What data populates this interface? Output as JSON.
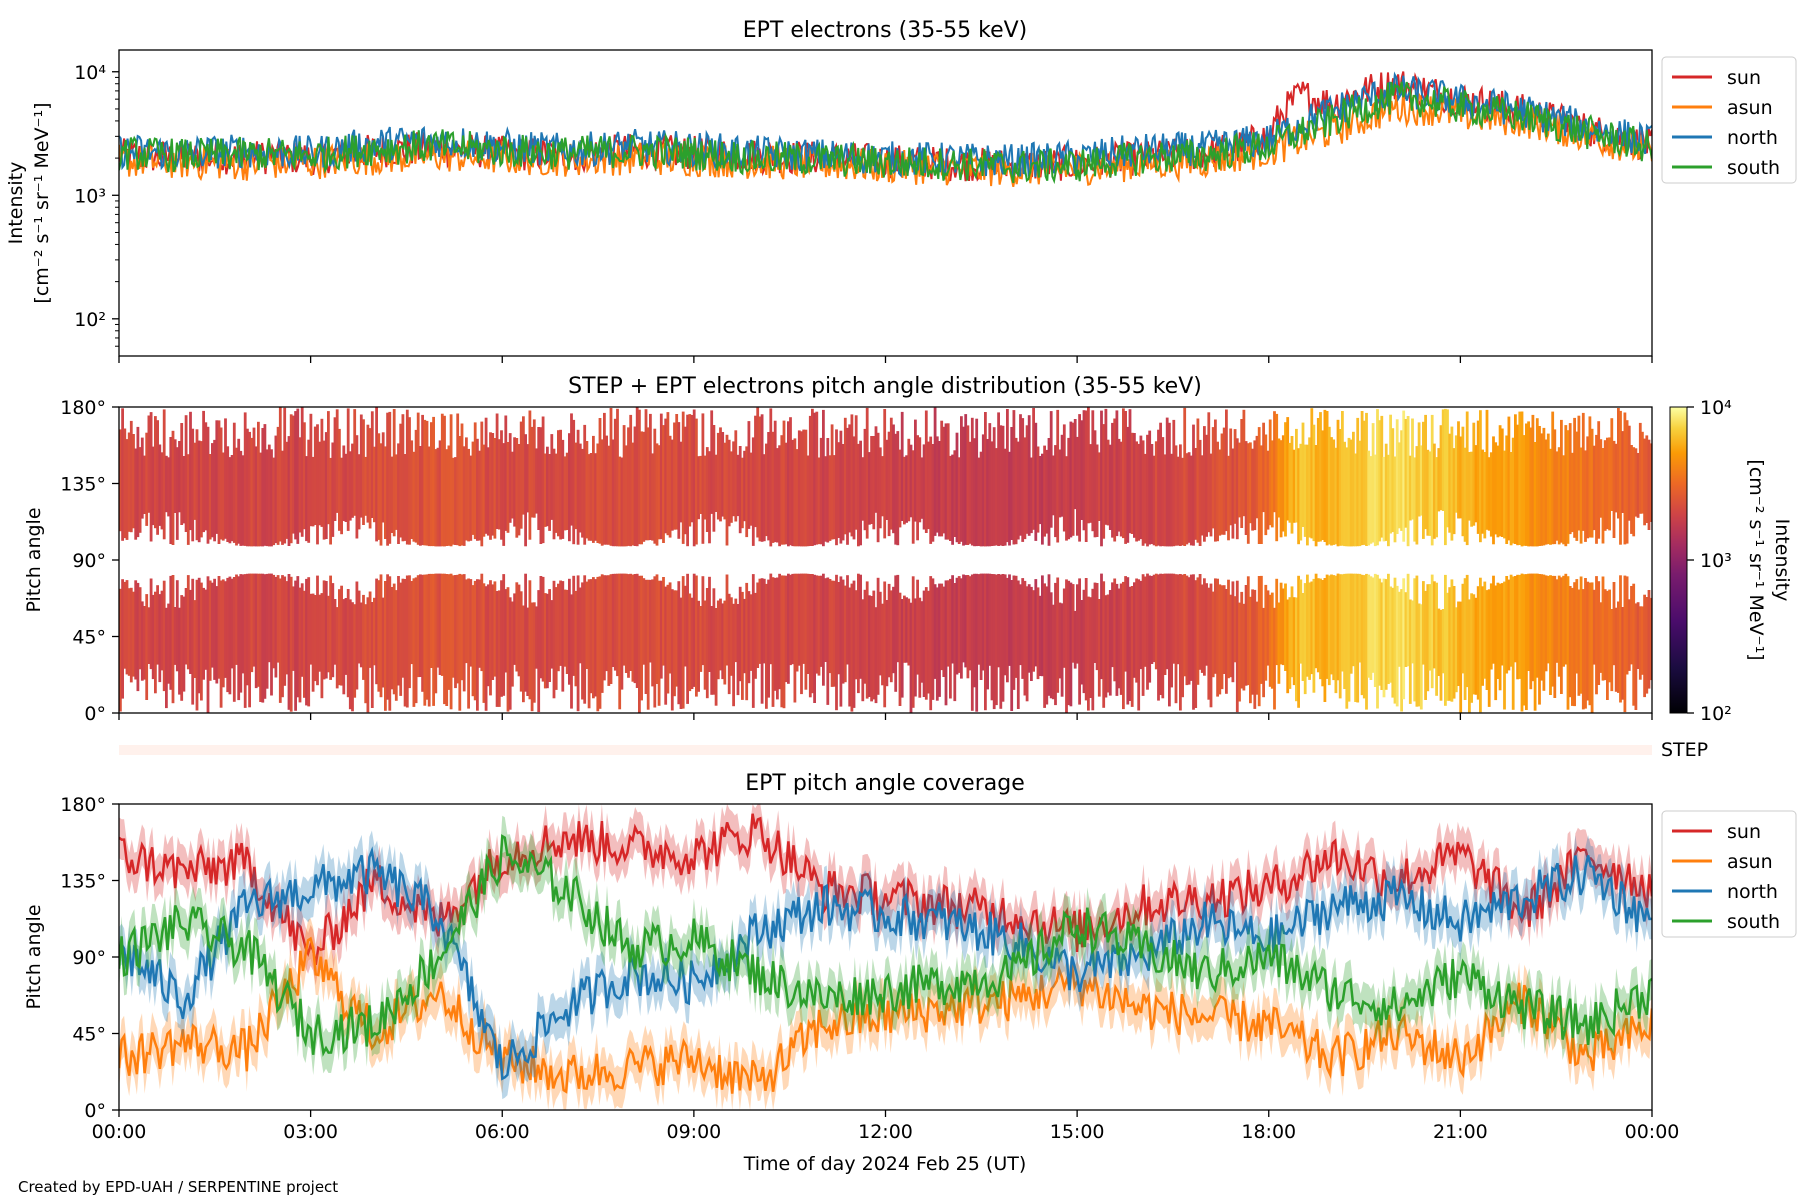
{
  "chart_data": [
    {
      "type": "line",
      "title": "EPT electrons (35-55 keV)",
      "ylabel_line1": "Intensity",
      "ylabel_line2": "[cm⁻² s⁻¹ sr⁻¹ MeV⁻¹]",
      "yscale": "log",
      "ylim": [
        50,
        15000
      ],
      "xlim_hours": [
        0,
        24
      ],
      "y_ticks": [
        {
          "value": 100,
          "label": "10²"
        },
        {
          "value": 1000,
          "label": "10³"
        },
        {
          "value": 10000,
          "label": "10⁴"
        }
      ],
      "legend_position": "outside-right",
      "series": [
        {
          "name": "sun",
          "color": "#d62728",
          "hours": [
            0,
            1,
            2,
            3,
            4,
            5,
            6,
            7,
            8,
            9,
            10,
            11,
            12,
            13,
            14,
            15,
            16,
            17,
            17.5,
            18,
            18.2,
            18.5,
            19,
            19.5,
            20,
            20.5,
            21,
            22,
            23,
            24
          ],
          "values": [
            2100,
            2000,
            2050,
            2000,
            2300,
            2400,
            2200,
            2100,
            2300,
            2200,
            2100,
            2000,
            1900,
            1800,
            1750,
            1800,
            2000,
            2200,
            2400,
            3000,
            4500,
            6500,
            5500,
            7000,
            8000,
            7000,
            6000,
            4800,
            3400,
            2500
          ]
        },
        {
          "name": "asun",
          "color": "#ff7f0e",
          "hours": [
            0,
            1,
            2,
            3,
            4,
            5,
            6,
            7,
            8,
            9,
            10,
            11,
            12,
            13,
            14,
            15,
            16,
            17,
            18,
            18.5,
            19,
            19.5,
            20,
            20.5,
            21,
            22,
            23,
            24
          ],
          "values": [
            1900,
            1850,
            1800,
            1850,
            2000,
            2100,
            2000,
            1950,
            2000,
            1950,
            1850,
            1800,
            1700,
            1650,
            1600,
            1650,
            1800,
            1900,
            2300,
            2800,
            3300,
            4200,
            5200,
            5000,
            4500,
            4000,
            3000,
            2200
          ]
        },
        {
          "name": "north",
          "color": "#1f77b4",
          "hours": [
            0,
            1,
            2,
            3,
            4,
            5,
            6,
            7,
            8,
            9,
            10,
            11,
            12,
            13,
            14,
            15,
            16,
            17,
            18,
            18.5,
            19,
            19.5,
            20,
            20.5,
            21,
            22,
            23,
            24
          ],
          "values": [
            2300,
            2200,
            2300,
            2200,
            2600,
            2800,
            2500,
            2300,
            2500,
            2400,
            2200,
            2100,
            2000,
            1950,
            1900,
            2000,
            2300,
            2400,
            2800,
            3800,
            4800,
            6000,
            7000,
            6500,
            5800,
            4800,
            3500,
            2700
          ]
        },
        {
          "name": "south",
          "color": "#2ca02c",
          "hours": [
            0,
            1,
            2,
            3,
            4,
            5,
            6,
            7,
            8,
            9,
            10,
            11,
            12,
            13,
            14,
            15,
            16,
            17,
            18,
            18.5,
            19,
            19.5,
            20,
            20.5,
            21,
            22,
            23,
            24
          ],
          "values": [
            2200,
            2100,
            2150,
            2100,
            2400,
            2500,
            2300,
            2200,
            2300,
            2200,
            2000,
            1950,
            1850,
            1800,
            1700,
            1750,
            2000,
            2100,
            2500,
            3200,
            4000,
            5200,
            6200,
            5800,
            5200,
            4300,
            3200,
            2400
          ]
        }
      ]
    },
    {
      "type": "heatmap",
      "title": "STEP + EPT electrons pitch angle distribution (35-55 keV)",
      "ylabel": "Pitch angle",
      "y_ticks": [
        {
          "value": 0,
          "label": "0°"
        },
        {
          "value": 45,
          "label": "45°"
        },
        {
          "value": 90,
          "label": "90°"
        },
        {
          "value": 135,
          "label": "135°"
        },
        {
          "value": 180,
          "label": "180°"
        }
      ],
      "ylim": [
        0,
        180
      ],
      "colormap": "inferno",
      "colorbar": {
        "label_line1": "Intensity",
        "label_line2": "[cm⁻² s⁻¹ sr⁻¹ MeV⁻¹]",
        "scale": "log",
        "range": [
          100,
          10000
        ],
        "ticks": [
          {
            "value": 100,
            "label": "10²"
          },
          {
            "value": 1000,
            "label": "10³"
          },
          {
            "value": 10000,
            "label": "10⁴"
          }
        ]
      },
      "step_label": "STEP"
    },
    {
      "type": "line",
      "title": "EPT pitch angle coverage",
      "ylabel": "Pitch angle",
      "ylim": [
        0,
        180
      ],
      "xlim_hours": [
        0,
        24
      ],
      "xlabel": "Time of day 2024 Feb 25 (UT)",
      "x_ticks": [
        {
          "value": 0,
          "label": "00:00"
        },
        {
          "value": 3,
          "label": "03:00"
        },
        {
          "value": 6,
          "label": "06:00"
        },
        {
          "value": 9,
          "label": "09:00"
        },
        {
          "value": 12,
          "label": "12:00"
        },
        {
          "value": 15,
          "label": "15:00"
        },
        {
          "value": 18,
          "label": "18:00"
        },
        {
          "value": 21,
          "label": "21:00"
        },
        {
          "value": 24,
          "label": "00:00"
        }
      ],
      "legend_position": "outside-right",
      "series": [
        {
          "name": "sun",
          "color": "#d62728",
          "hours": [
            0,
            1,
            2,
            3,
            4,
            5,
            6,
            7,
            8,
            9,
            10,
            11,
            12,
            13,
            14,
            15,
            16,
            17,
            18,
            19,
            20,
            21,
            22,
            23,
            24
          ],
          "values": [
            150,
            140,
            145,
            90,
            135,
            110,
            150,
            160,
            155,
            150,
            165,
            130,
            125,
            120,
            115,
            105,
            120,
            125,
            130,
            150,
            135,
            150,
            115,
            150,
            130
          ]
        },
        {
          "name": "asun",
          "color": "#ff7f0e",
          "hours": [
            0,
            1,
            2,
            3,
            4,
            5,
            6,
            7,
            8,
            9,
            10,
            11,
            12,
            13,
            14,
            15,
            16,
            17,
            18,
            19,
            20,
            21,
            22,
            23,
            24
          ],
          "values": [
            30,
            40,
            35,
            90,
            45,
            70,
            30,
            20,
            25,
            30,
            15,
            50,
            55,
            60,
            65,
            75,
            60,
            55,
            50,
            30,
            45,
            30,
            65,
            30,
            50
          ]
        },
        {
          "name": "north",
          "color": "#1f77b4",
          "hours": [
            0,
            1,
            2,
            3,
            4,
            5,
            6,
            7,
            8,
            9,
            10,
            11,
            12,
            13,
            14,
            15,
            16,
            17,
            18,
            19,
            20,
            21,
            22,
            23,
            24
          ],
          "values": [
            95,
            65,
            120,
            130,
            140,
            115,
            25,
            60,
            80,
            75,
            105,
            120,
            115,
            110,
            100,
            80,
            90,
            110,
            100,
            120,
            125,
            110,
            125,
            140,
            110
          ]
        },
        {
          "name": "south",
          "color": "#2ca02c",
          "hours": [
            0,
            1,
            2,
            3,
            4,
            5,
            6,
            7,
            8,
            9,
            10,
            11,
            12,
            13,
            14,
            15,
            16,
            17,
            18,
            19,
            20,
            21,
            22,
            23,
            24
          ],
          "values": [
            90,
            110,
            95,
            45,
            50,
            90,
            150,
            130,
            95,
            100,
            80,
            65,
            70,
            75,
            80,
            110,
            95,
            80,
            90,
            70,
            60,
            80,
            60,
            50,
            70
          ]
        }
      ]
    }
  ],
  "footer": "Created by EPD-UAH / SERPENTINE project"
}
